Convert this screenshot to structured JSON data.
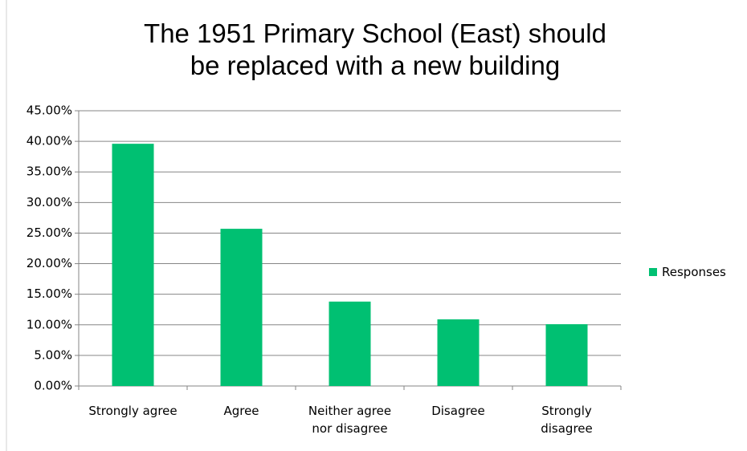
{
  "chart_data": {
    "type": "bar",
    "title": "The 1951 Primary School (East) should be replaced with a new building",
    "categories": [
      "Strongly agree",
      "Agree",
      "Neither agree nor disagree",
      "Disagree",
      "Strongly disagree"
    ],
    "series": [
      {
        "name": "Responses",
        "color": "#00c072",
        "values": [
          39.6,
          25.7,
          13.8,
          10.9,
          10.1
        ]
      }
    ],
    "ylim": [
      0,
      45
    ],
    "yticks": [
      {
        "value": 0,
        "label": "0.00%"
      },
      {
        "value": 5,
        "label": "5.00%"
      },
      {
        "value": 10,
        "label": "10.00%"
      },
      {
        "value": 15,
        "label": "15.00%"
      },
      {
        "value": 20,
        "label": "20.00%"
      },
      {
        "value": 25,
        "label": "25.00%"
      },
      {
        "value": 30,
        "label": "30.00%"
      },
      {
        "value": 35,
        "label": "35.00%"
      },
      {
        "value": 40,
        "label": "40.00%"
      },
      {
        "value": 45,
        "label": "45.00%"
      }
    ],
    "grid": true,
    "legend": "right"
  }
}
